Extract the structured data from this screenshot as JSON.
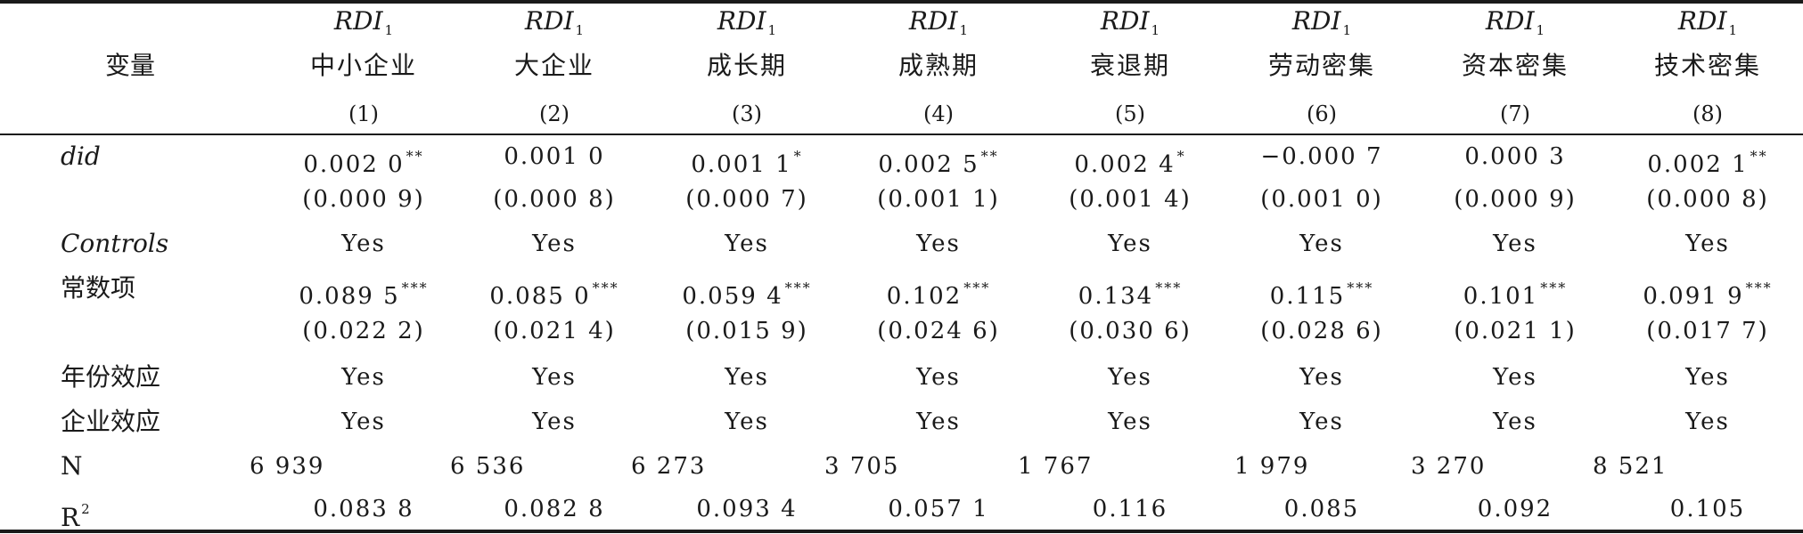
{
  "header": {
    "variable_label": "变量",
    "columns": [
      {
        "dep": "RDI",
        "dep_sub": "1",
        "group": "中小企业",
        "num": "(1)"
      },
      {
        "dep": "RDI",
        "dep_sub": "1",
        "group": "大企业",
        "num": "(2)"
      },
      {
        "dep": "RDI",
        "dep_sub": "1",
        "group": "成长期",
        "num": "(3)"
      },
      {
        "dep": "RDI",
        "dep_sub": "1",
        "group": "成熟期",
        "num": "(4)"
      },
      {
        "dep": "RDI",
        "dep_sub": "1",
        "group": "衰退期",
        "num": "(5)"
      },
      {
        "dep": "RDI",
        "dep_sub": "1",
        "group": "劳动密集",
        "num": "(6)"
      },
      {
        "dep": "RDI",
        "dep_sub": "1",
        "group": "资本密集",
        "num": "(7)"
      },
      {
        "dep": "RDI",
        "dep_sub": "1",
        "group": "技术密集",
        "num": "(8)"
      }
    ]
  },
  "rows": [
    {
      "label": "did",
      "values": [
        {
          "v": "0.002 0",
          "s": "**"
        },
        {
          "v": "0.001 0",
          "s": ""
        },
        {
          "v": "0.001 1",
          "s": "*"
        },
        {
          "v": "0.002 5",
          "s": "**"
        },
        {
          "v": "0.002 4",
          "s": "*"
        },
        {
          "v": "−0.000 7",
          "s": ""
        },
        {
          "v": "0.000 3",
          "s": ""
        },
        {
          "v": "0.002 1",
          "s": "**"
        }
      ]
    },
    {
      "label": "",
      "values": [
        {
          "v": "(0.000 9)",
          "s": ""
        },
        {
          "v": "(0.000 8)",
          "s": ""
        },
        {
          "v": "(0.000 7)",
          "s": ""
        },
        {
          "v": "(0.001 1)",
          "s": ""
        },
        {
          "v": "(0.001 4)",
          "s": ""
        },
        {
          "v": "(0.001 0)",
          "s": ""
        },
        {
          "v": "(0.000 9)",
          "s": ""
        },
        {
          "v": "(0.000 8)",
          "s": ""
        }
      ]
    },
    {
      "label": "Controls",
      "values": [
        {
          "v": "Yes",
          "s": ""
        },
        {
          "v": "Yes",
          "s": ""
        },
        {
          "v": "Yes",
          "s": ""
        },
        {
          "v": "Yes",
          "s": ""
        },
        {
          "v": "Yes",
          "s": ""
        },
        {
          "v": "Yes",
          "s": ""
        },
        {
          "v": "Yes",
          "s": ""
        },
        {
          "v": "Yes",
          "s": ""
        }
      ]
    },
    {
      "label": "常数项",
      "values": [
        {
          "v": "0.089 5",
          "s": "***"
        },
        {
          "v": "0.085 0",
          "s": "***"
        },
        {
          "v": "0.059 4",
          "s": "***"
        },
        {
          "v": "0.102",
          "s": "***"
        },
        {
          "v": "0.134",
          "s": "***"
        },
        {
          "v": "0.115",
          "s": "***"
        },
        {
          "v": "0.101",
          "s": "***"
        },
        {
          "v": "0.091 9",
          "s": "***"
        }
      ]
    },
    {
      "label": "",
      "values": [
        {
          "v": "(0.022 2)",
          "s": ""
        },
        {
          "v": "(0.021 4)",
          "s": ""
        },
        {
          "v": "(0.015 9)",
          "s": ""
        },
        {
          "v": "(0.024 6)",
          "s": ""
        },
        {
          "v": "(0.030 6)",
          "s": ""
        },
        {
          "v": "(0.028 6)",
          "s": ""
        },
        {
          "v": "(0.021 1)",
          "s": ""
        },
        {
          "v": "(0.017 7)",
          "s": ""
        }
      ]
    },
    {
      "label": "年份效应",
      "values": [
        {
          "v": "Yes",
          "s": ""
        },
        {
          "v": "Yes",
          "s": ""
        },
        {
          "v": "Yes",
          "s": ""
        },
        {
          "v": "Yes",
          "s": ""
        },
        {
          "v": "Yes",
          "s": ""
        },
        {
          "v": "Yes",
          "s": ""
        },
        {
          "v": "Yes",
          "s": ""
        },
        {
          "v": "Yes",
          "s": ""
        }
      ]
    },
    {
      "label": "企业效应",
      "values": [
        {
          "v": "Yes",
          "s": ""
        },
        {
          "v": "Yes",
          "s": ""
        },
        {
          "v": "Yes",
          "s": ""
        },
        {
          "v": "Yes",
          "s": ""
        },
        {
          "v": "Yes",
          "s": ""
        },
        {
          "v": "Yes",
          "s": ""
        },
        {
          "v": "Yes",
          "s": ""
        },
        {
          "v": "Yes",
          "s": ""
        }
      ]
    },
    {
      "label": "N",
      "values": [
        {
          "v": "6 939",
          "s": ""
        },
        {
          "v": "6 536",
          "s": ""
        },
        {
          "v": "6 273",
          "s": ""
        },
        {
          "v": "3 705",
          "s": ""
        },
        {
          "v": "1 767",
          "s": ""
        },
        {
          "v": "1 979",
          "s": ""
        },
        {
          "v": "3 270",
          "s": ""
        },
        {
          "v": "8 521",
          "s": ""
        }
      ]
    },
    {
      "label": "R",
      "label_sup": "2",
      "values": [
        {
          "v": "0.083 8",
          "s": ""
        },
        {
          "v": "0.082 8",
          "s": ""
        },
        {
          "v": "0.093 4",
          "s": ""
        },
        {
          "v": "0.057 1",
          "s": ""
        },
        {
          "v": "0.116",
          "s": ""
        },
        {
          "v": "0.085",
          "s": ""
        },
        {
          "v": "0.092",
          "s": ""
        },
        {
          "v": "0.105",
          "s": ""
        }
      ]
    }
  ]
}
